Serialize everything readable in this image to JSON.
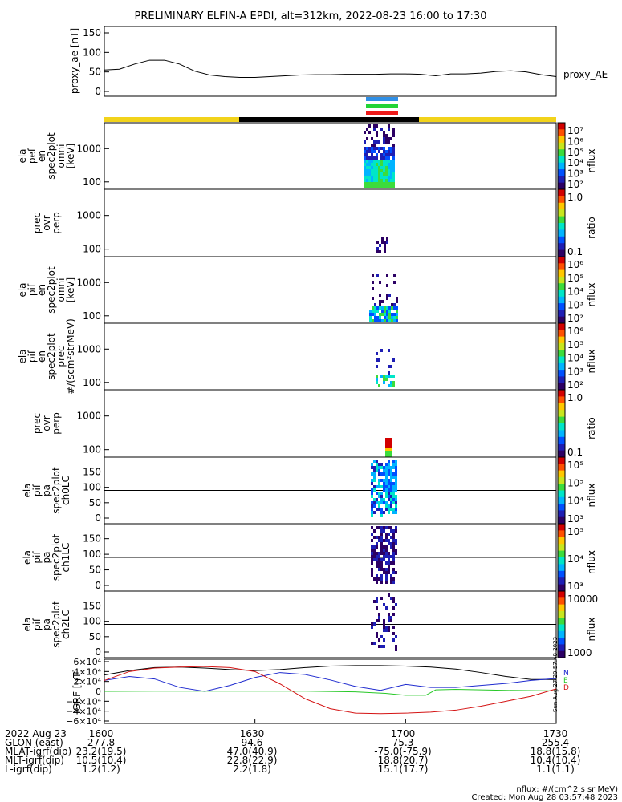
{
  "title": "PRELIMINARY ELFIN-A EPDI, alt=312km, 2022-08-23 16:00 to 17:30",
  "colors": {
    "bar_yellow": "#f2d31b",
    "bar_black": "#000000",
    "marker_blue": "#2f8fe6",
    "marker_green": "#22d436",
    "marker_red": "#ee1b1b",
    "igrf_black": "#000000",
    "igrf_blue": "#1f2bcf",
    "igrf_green": "#28c828",
    "igrf_red": "#d41414"
  },
  "chart_data": [
    {
      "type": "line",
      "panel": "proxy_ae",
      "ylabel": "proxy_ae [nT]",
      "yticks": [
        "150",
        "100",
        "50",
        "0"
      ],
      "ylim": [
        0,
        150
      ],
      "series": [
        {
          "name": "proxy_AE",
          "x_minutes": [
            0,
            3,
            6,
            9,
            12,
            15,
            18,
            21,
            24,
            27,
            30,
            33,
            36,
            39,
            42,
            45,
            48,
            51,
            54,
            57,
            60,
            63,
            66,
            69,
            72,
            75,
            78,
            81,
            84,
            87,
            90
          ],
          "values": [
            55,
            57,
            70,
            80,
            80,
            70,
            52,
            42,
            38,
            36,
            36,
            38,
            40,
            42,
            43,
            43,
            44,
            44,
            44,
            45,
            45,
            44,
            40,
            45,
            45,
            47,
            51,
            53,
            50,
            43,
            38
          ]
        }
      ]
    },
    {
      "type": "heatmap",
      "panel": "elx_pef_en_spec2plot_omni",
      "ylabel": "ela pef en spec2plot omni [keV]",
      "yticks": [
        "1000",
        "100"
      ],
      "ylim": [
        60,
        6000
      ],
      "scale": "log",
      "colorbar_label": "nflux",
      "colorbar_ticks": [
        "10⁷",
        "10⁶",
        "10⁵",
        "10⁴",
        "10³",
        "10²"
      ]
    },
    {
      "type": "heatmap",
      "panel": "prec_ovr_perp_1",
      "ylabel": "prec ovr perp",
      "yticks": [
        "1000",
        "100"
      ],
      "ylim": [
        60,
        6000
      ],
      "scale": "log",
      "colorbar_label": "ratio",
      "colorbar_ticks": [
        "1.0",
        "0.1"
      ]
    },
    {
      "type": "heatmap",
      "panel": "ela_pif_en_spec2plot_omni",
      "ylabel": "ela pif en spec2plot omni [keV]",
      "yticks": [
        "1000",
        "100"
      ],
      "ylim": [
        60,
        6000
      ],
      "scale": "log",
      "colorbar_label": "nflux",
      "colorbar_ticks": [
        "10⁶",
        "10⁵",
        "10⁴",
        "10³",
        "10²"
      ]
    },
    {
      "type": "heatmap",
      "panel": "ela_pif_en_spec2plot_prec",
      "ylabel": "ela pif en spec2plot prec #/(scm²strMeV)",
      "yticks": [
        "1000",
        "100"
      ],
      "ylim": [
        60,
        6000
      ],
      "scale": "log",
      "colorbar_label": "nflux",
      "colorbar_ticks": [
        "10⁶",
        "10⁵",
        "10⁴",
        "10³",
        "10²"
      ]
    },
    {
      "type": "heatmap",
      "panel": "prec_ovr_perp_2",
      "ylabel": "prec ovr perp",
      "yticks": [
        "1000",
        "100"
      ],
      "ylim": [
        60,
        6000
      ],
      "scale": "log",
      "colorbar_label": "ratio",
      "colorbar_ticks": [
        "1.0",
        "0.1"
      ]
    },
    {
      "type": "heatmap",
      "panel": "ela_pif_pa_spec2plot_ch0LC",
      "ylabel": "ela pif pa spec2plot ch0LC",
      "yticks": [
        "150",
        "100",
        "50",
        "0"
      ],
      "ylim": [
        0,
        180
      ],
      "colorbar_label": "nflux",
      "colorbar_ticks": [
        "10⁵",
        "10⁵",
        "10⁴",
        "10³"
      ]
    },
    {
      "type": "heatmap",
      "panel": "ela_pif_pa_spec2plot_ch1LC",
      "ylabel": "ela pif pa spec2plot ch1LC",
      "yticks": [
        "150",
        "100",
        "50",
        "0"
      ],
      "ylim": [
        0,
        180
      ],
      "colorbar_label": "nflux",
      "colorbar_ticks": [
        "10⁵",
        "10⁴",
        "10³"
      ]
    },
    {
      "type": "heatmap",
      "panel": "ela_pif_pa_spec2plot_ch2LC",
      "ylabel": "ela pif pa spec2plot ch2LC",
      "yticks": [
        "150",
        "100",
        "50",
        "0"
      ],
      "ylim": [
        0,
        180
      ],
      "colorbar_label": "nflux",
      "colorbar_ticks": [
        "10000",
        "1000"
      ]
    },
    {
      "type": "line",
      "panel": "igrf",
      "ylabel": "IGRF [nT]",
      "yticks": [
        "6×10⁴",
        "4×10⁴",
        "2×10⁴",
        "0",
        "−2×10⁴",
        "−4×10⁴",
        "−6×10⁴"
      ],
      "ylim": [
        -60000,
        60000
      ],
      "legend": [
        "N",
        "E",
        "D"
      ],
      "series": [
        {
          "x_minutes": [
            0,
            5,
            10,
            15,
            20,
            25,
            30,
            35,
            40,
            45,
            50,
            55,
            60,
            65,
            70,
            75,
            80,
            85,
            90
          ],
          "values": [
            33000,
            42000,
            48000,
            49000,
            47000,
            44000,
            42000,
            44000,
            48000,
            51000,
            52000,
            52000,
            51000,
            49000,
            45000,
            38000,
            30000,
            24000,
            24000
          ]
        },
        {
          "x_minutes": [
            0,
            5,
            10,
            15,
            20,
            25,
            30,
            35,
            40,
            45,
            50,
            55,
            60,
            65,
            70,
            75,
            80,
            85,
            90
          ],
          "values": [
            22000,
            30000,
            25000,
            8000,
            0,
            12000,
            28000,
            38000,
            34000,
            23000,
            10000,
            2000,
            14000,
            8000,
            8000,
            12000,
            16000,
            22000,
            26000
          ]
        },
        {
          "x_minutes": [
            0,
            10,
            20,
            30,
            40,
            50,
            56,
            60,
            64,
            66,
            70,
            80,
            90
          ],
          "values": [
            0,
            500,
            500,
            500,
            500,
            -1000,
            -4000,
            -8000,
            -8000,
            3000,
            4000,
            2000,
            1000
          ]
        },
        {
          "x_minutes": [
            0,
            5,
            10,
            15,
            20,
            25,
            30,
            35,
            40,
            45,
            50,
            55,
            60,
            65,
            70,
            75,
            80,
            85,
            90
          ],
          "values": [
            22000,
            40000,
            47000,
            49000,
            50000,
            48000,
            40000,
            15000,
            -15000,
            -35000,
            -44000,
            -45000,
            -44000,
            -42000,
            -38000,
            -30000,
            -20000,
            -10000,
            5000
          ]
        }
      ]
    }
  ],
  "proxy_label": "proxy_AE",
  "bottom": {
    "rows": [
      {
        "label": "2022 Aug 23",
        "values": [
          "1600",
          "1630",
          "1700",
          "1730"
        ]
      },
      {
        "label": "GLON (east)",
        "values": [
          "277.8",
          "94.6",
          "75.3",
          "255.4"
        ]
      },
      {
        "label": "MLAT-igrf(dip)",
        "values": [
          "23.2(19.5)",
          "47.0(40.9)",
          "-75.0(-75.9)",
          "18.8(15.8)"
        ]
      },
      {
        "label": "MLT-igrf(dip)",
        "values": [
          "10.5(10.4)",
          "22.8(22.9)",
          "18.8(20.7)",
          "10.4(10.4)"
        ]
      },
      {
        "label": "L-igrf(dip)",
        "values": [
          "1.2(1.2)",
          "2.2(1.8)",
          "15.1(17.7)",
          "1.1(1.1)"
        ]
      }
    ],
    "footer_units": "nflux: #/(cm^2 s sr MeV)",
    "footer_created": "Created: Mon Aug 28 03:57:48 2023",
    "side_stamp": "Sun Aug 27 20:57:48 2023"
  }
}
